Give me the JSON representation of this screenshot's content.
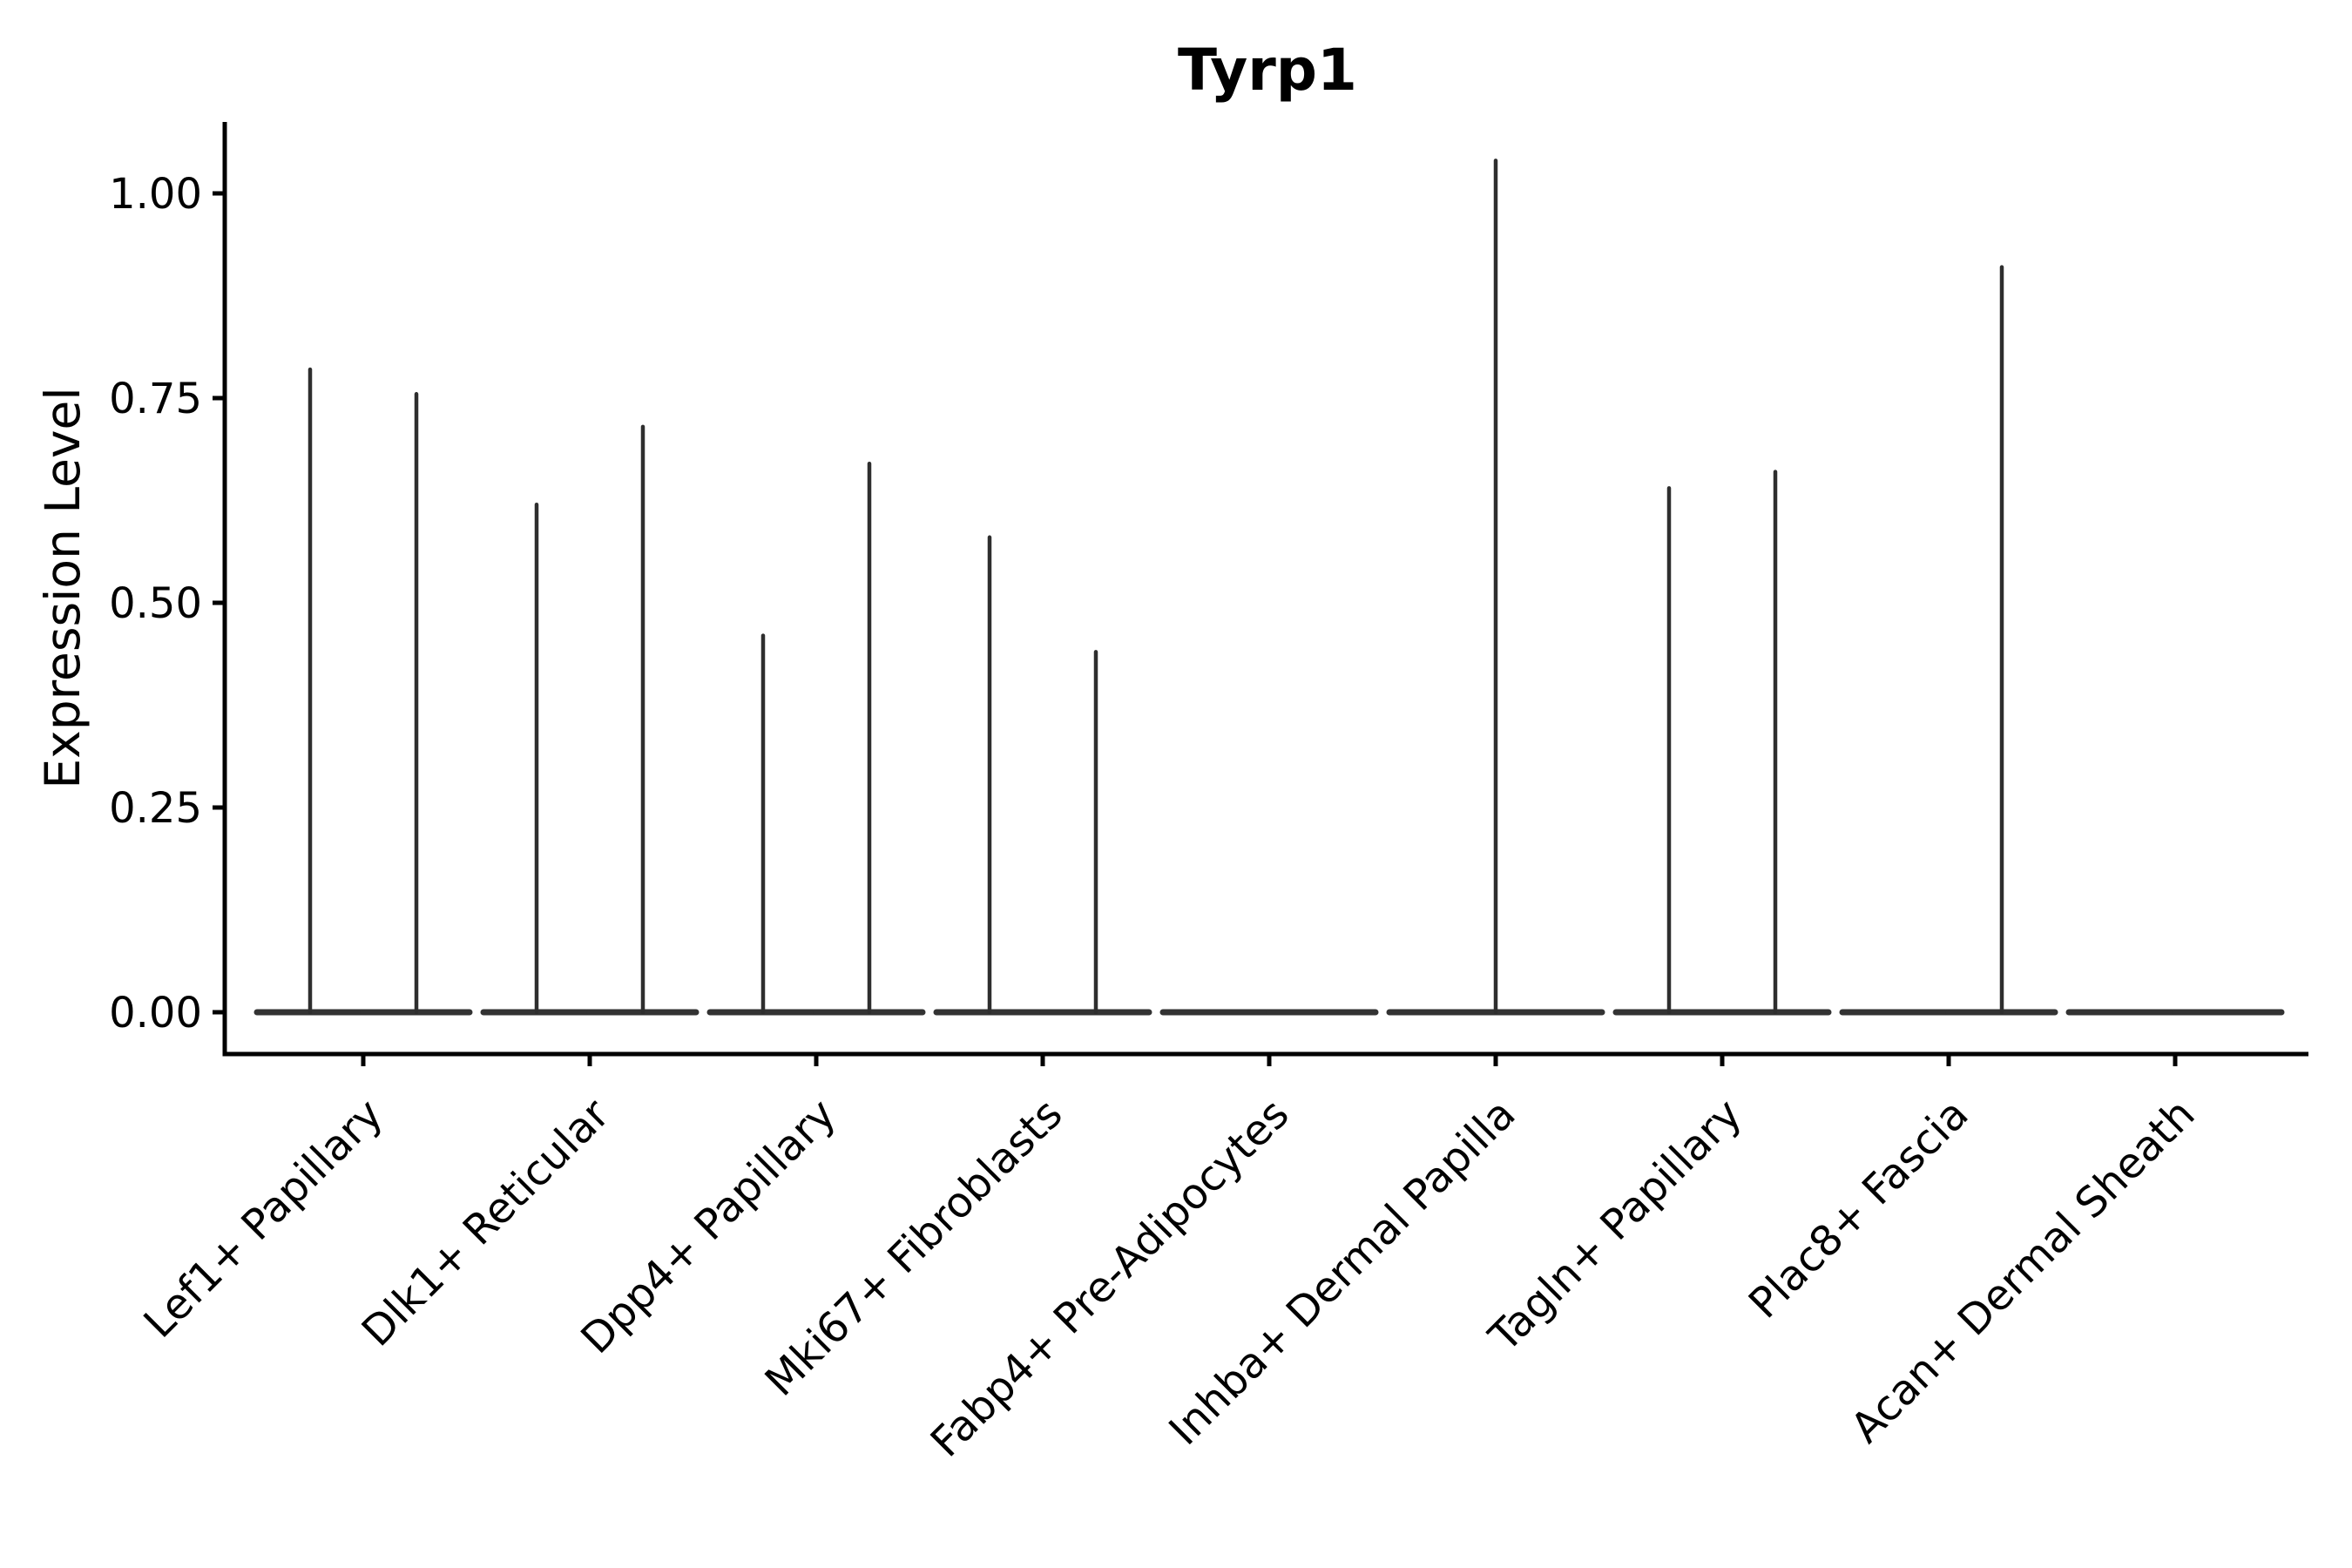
{
  "title": "Tyrp1",
  "axes": {
    "y_label": "Expression Level",
    "y_tick_labels": [
      "0.00",
      "0.25",
      "0.50",
      "0.75",
      "1.00"
    ],
    "x_label_angle_deg": 45
  },
  "colors": {
    "background": "#ffffff",
    "spine": "#000000",
    "violin_stroke": "#2e2e2e",
    "violin_base": "#333333",
    "text": "#000000"
  },
  "chart_data": {
    "type": "violin",
    "title": "Tyrp1",
    "xlabel": "",
    "ylabel": "Expression Level",
    "ylim": [
      -0.05,
      1.09
    ],
    "y_ticks": [
      0,
      0.25,
      0.5,
      0.75,
      1.0
    ],
    "grid": false,
    "legend": "none",
    "note": "Single-cell expression violin plot; nearly all density at 0 with thin spikes up to the maximum expressed value per group; two dodged group-violins per cluster unless noted",
    "categories": [
      "Lef1+ Papillary",
      "Dlk1+ Reticular",
      "Dpp4+ Papillary",
      "Mki67+ Fibroblasts",
      "Fabp4+ Pre-Adipocytes",
      "Inhba+ Dermal Papilla",
      "Tagln+ Papillary",
      "Plac8+ Fascia",
      "Acan+ Dermal Sheath"
    ],
    "series": [
      {
        "category": "Lef1+ Papillary",
        "violins": [
          {
            "position": -1,
            "max": 0.785
          },
          {
            "position": 1,
            "max": 0.755
          }
        ]
      },
      {
        "category": "Dlk1+ Reticular",
        "violins": [
          {
            "position": -1,
            "max": 0.62
          },
          {
            "position": 1,
            "max": 0.715
          }
        ]
      },
      {
        "category": "Dpp4+ Papillary",
        "violins": [
          {
            "position": -1,
            "max": 0.46
          },
          {
            "position": 1,
            "max": 0.67
          }
        ]
      },
      {
        "category": "Mki67+ Fibroblasts",
        "violins": [
          {
            "position": -1,
            "max": 0.58
          },
          {
            "position": 1,
            "max": 0.44
          }
        ]
      },
      {
        "category": "Fabp4+ Pre-Adipocytes",
        "violins": [
          {
            "position": -1,
            "max": 0
          },
          {
            "position": 1,
            "max": 0
          }
        ]
      },
      {
        "category": "Inhba+ Dermal Papilla",
        "violins": [
          {
            "position": 0,
            "max": 1.04,
            "wide": true
          }
        ]
      },
      {
        "category": "Tagln+ Papillary",
        "violins": [
          {
            "position": -1,
            "max": 0.64
          },
          {
            "position": 1,
            "max": 0.66
          }
        ]
      },
      {
        "category": "Plac8+ Fascia",
        "violins": [
          {
            "position": -1,
            "max": 0
          },
          {
            "position": 1,
            "max": 0.91
          }
        ]
      },
      {
        "category": "Acan+ Dermal Sheath",
        "violins": [
          {
            "position": -1,
            "max": 0
          },
          {
            "position": 1,
            "max": 0
          }
        ]
      }
    ]
  }
}
